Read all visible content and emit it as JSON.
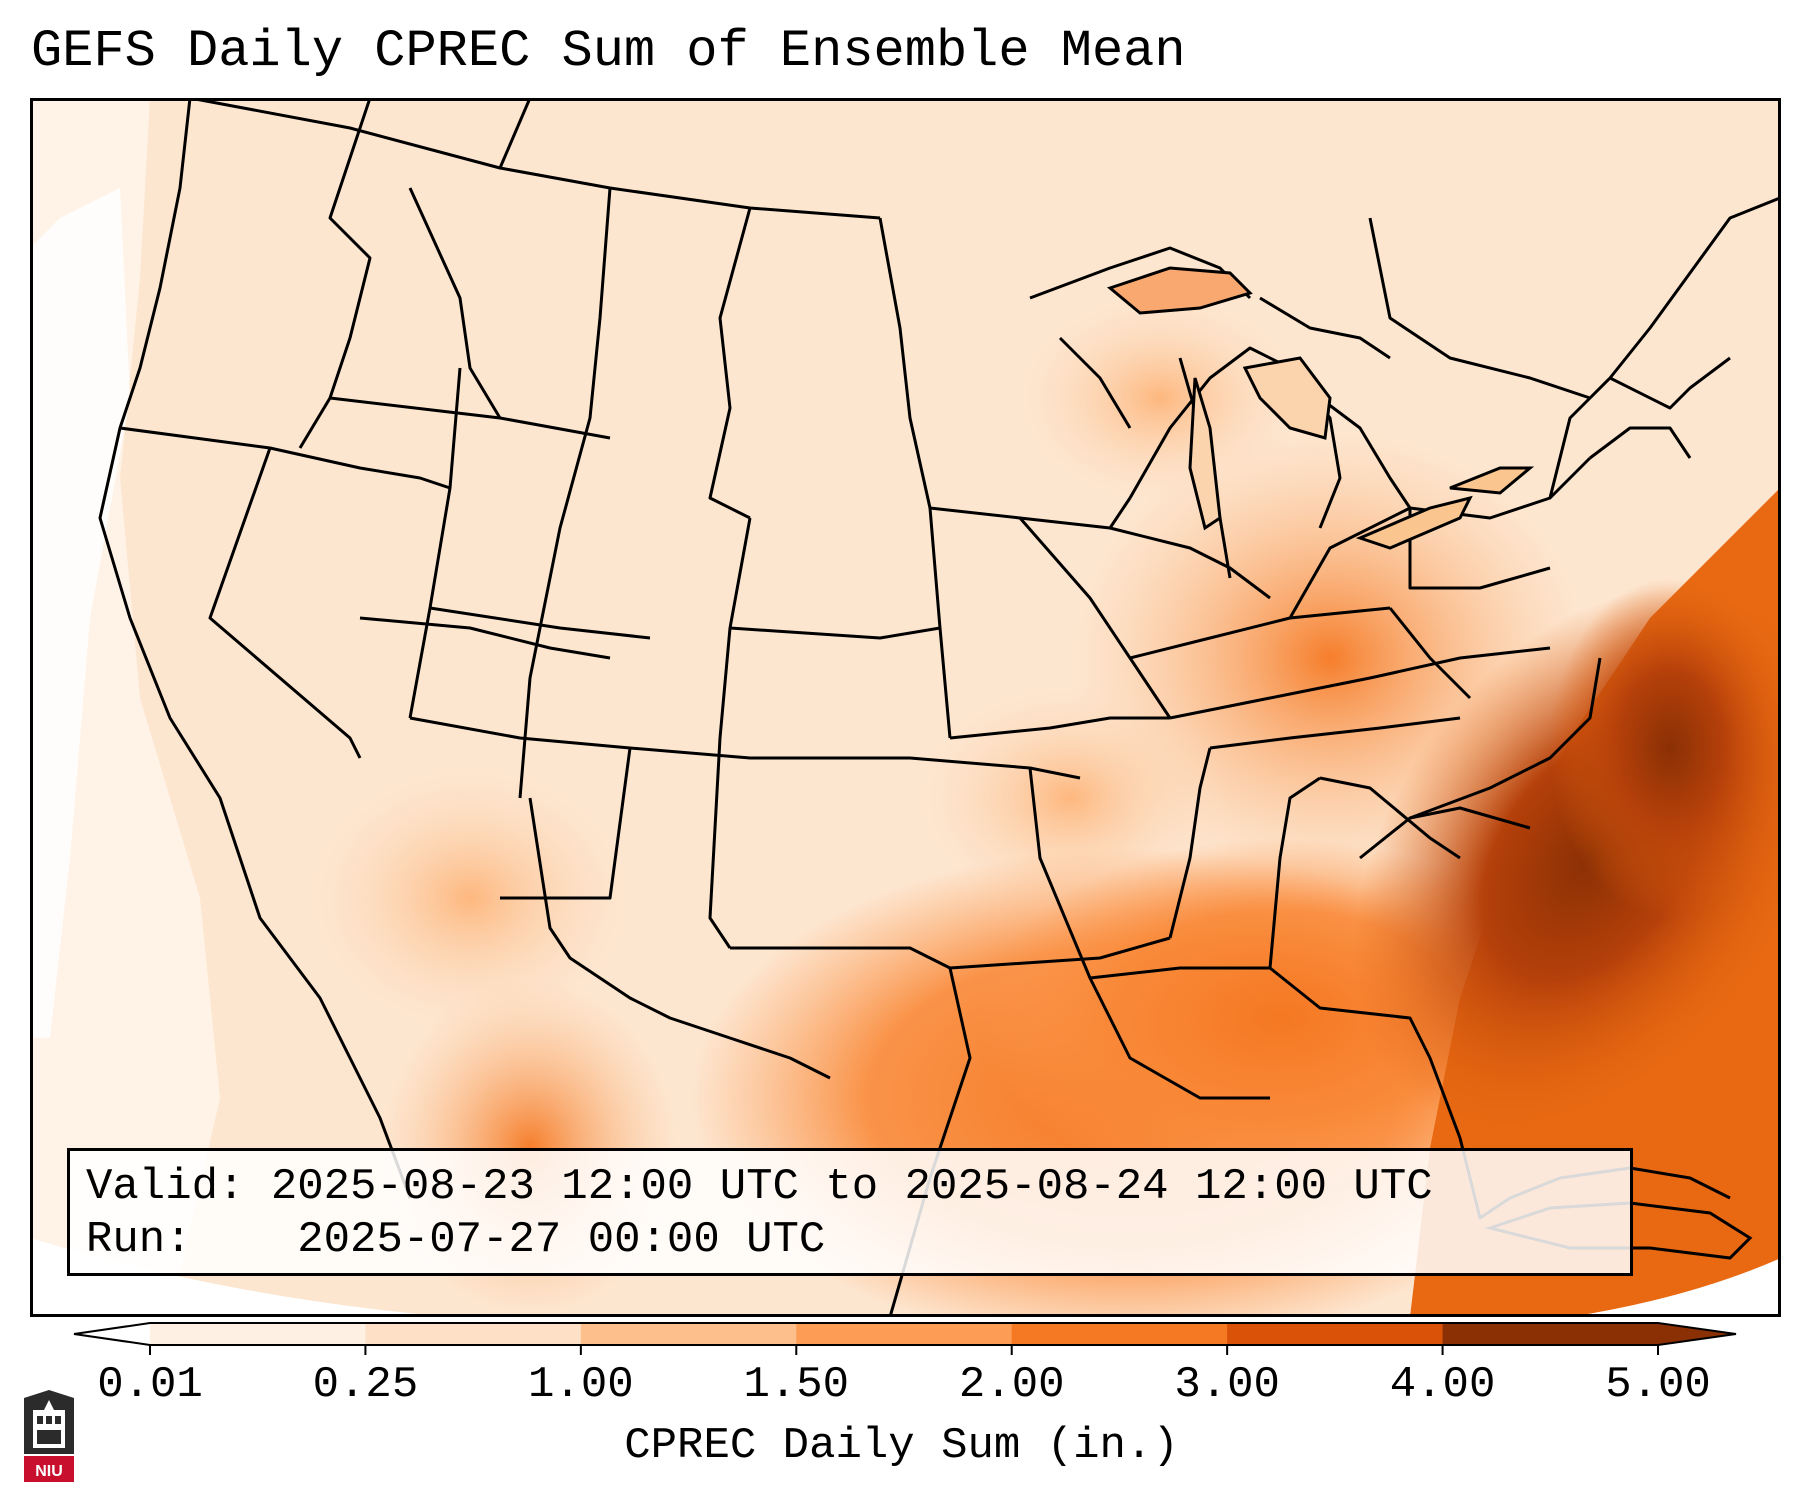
{
  "title": "GEFS Daily CPREC Sum of Ensemble Mean",
  "info": {
    "valid_label": "Valid:",
    "valid_value": "2025-08-23 12:00 UTC to 2025-08-24 12:00 UTC",
    "run_label": "Run:",
    "run_value": "2025-07-27 00:00 UTC"
  },
  "colorbar": {
    "label": "CPREC Daily Sum (in.)",
    "ticks": [
      "0.01",
      "0.25",
      "1.00",
      "1.50",
      "2.00",
      "3.00",
      "4.00",
      "5.00"
    ],
    "colors": [
      "#fff0e4",
      "#fde0c6",
      "#fdc08d",
      "#fd9c55",
      "#f57822",
      "#d95208",
      "#8a3004"
    ]
  },
  "logo": {
    "text": "NIU"
  },
  "colors": {
    "background": "#fff5eb",
    "border": "#000000",
    "state_lines": "#000000"
  }
}
